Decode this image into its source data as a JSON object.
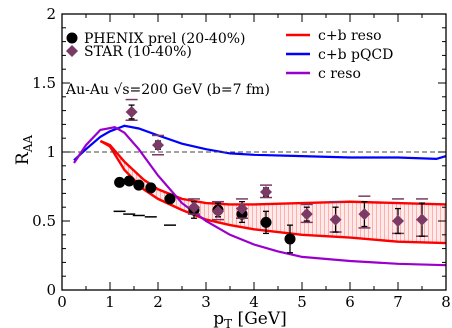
{
  "chart_data": {
    "type": "line",
    "xlabel": "p_T [GeV]",
    "ylabel": "R_AA",
    "xlim": [
      0,
      8
    ],
    "ylim": [
      0,
      2
    ],
    "xticks": [
      0,
      1,
      2,
      3,
      4,
      5,
      6,
      7,
      8
    ],
    "yticks": [
      0,
      0.5,
      1,
      1.5,
      2
    ],
    "xtick_labels": [
      "0",
      "1",
      "2",
      "3",
      "4",
      "5",
      "6",
      "7",
      "8"
    ],
    "ytick_labels": [
      "0",
      "0.5",
      "1",
      "1.5",
      "2"
    ],
    "grid": false,
    "legend_placement": "top",
    "annotation": "Au-Au √s=200 GeV (b=7 fm)",
    "reference_line": {
      "y": 1.0,
      "style": "dashed"
    },
    "legend": {
      "phenix": "PHENIX prel (20-40%)",
      "star": "STAR  (10-40%)",
      "cb_reso": "c+b reso",
      "cb_pqcd": "c+b pQCD",
      "c_reso": "c reso"
    },
    "series": [
      {
        "key": "phenix",
        "kind": "points",
        "marker": "circle",
        "color": "#000000",
        "points": [
          {
            "x": 1.2,
            "y": 0.78,
            "yerr": 0.0,
            "sys_low": 0.57,
            "sys_high": null
          },
          {
            "x": 1.4,
            "y": 0.79,
            "yerr": 0.0,
            "sys_low": 0.55,
            "sys_high": null
          },
          {
            "x": 1.6,
            "y": 0.76,
            "yerr": 0.0,
            "sys_low": 0.54,
            "sys_high": null
          },
          {
            "x": 1.85,
            "y": 0.74,
            "yerr": 0.0,
            "sys_low": 0.53,
            "sys_high": null
          },
          {
            "x": 2.25,
            "y": 0.66,
            "yerr": 0.02,
            "sys_low": 0.47,
            "sys_high": null
          },
          {
            "x": 2.75,
            "y": 0.58,
            "yerr": 0.06,
            "sys_low": null,
            "sys_high": null
          },
          {
            "x": 3.25,
            "y": 0.58,
            "yerr": 0.05,
            "sys_low": null,
            "sys_high": null
          },
          {
            "x": 3.75,
            "y": 0.55,
            "yerr": 0.06,
            "sys_low": null,
            "sys_high": null
          },
          {
            "x": 4.25,
            "y": 0.49,
            "yerr": 0.08,
            "sys_low": null,
            "sys_high": null
          },
          {
            "x": 4.75,
            "y": 0.37,
            "yerr": 0.1,
            "sys_low": null,
            "sys_high": null
          }
        ]
      },
      {
        "key": "star",
        "kind": "points",
        "marker": "diamond",
        "color": "#7b3a66",
        "points": [
          {
            "x": 1.45,
            "y": 1.29,
            "yerr": 0.05,
            "sys_low": 1.23,
            "sys_high": 1.38
          },
          {
            "x": 2.0,
            "y": 1.05,
            "yerr": 0.03,
            "sys_low": 0.98,
            "sys_high": 1.12
          },
          {
            "x": 2.75,
            "y": 0.6,
            "yerr": 0.04,
            "sys_low": 0.55,
            "sys_high": 0.66
          },
          {
            "x": 3.25,
            "y": 0.57,
            "yerr": 0.04,
            "sys_low": 0.51,
            "sys_high": 0.64
          },
          {
            "x": 3.75,
            "y": 0.59,
            "yerr": 0.05,
            "sys_low": 0.52,
            "sys_high": 0.66
          },
          {
            "x": 4.25,
            "y": 0.71,
            "yerr": 0.03,
            "sys_low": 0.67,
            "sys_high": 0.76
          },
          {
            "x": 5.1,
            "y": 0.55,
            "yerr": 0.05,
            "sys_low": 0.49,
            "sys_high": 0.62
          },
          {
            "x": 5.7,
            "y": 0.51,
            "yerr": 0.09,
            "sys_low": 0.42,
            "sys_high": 0.64
          },
          {
            "x": 6.3,
            "y": 0.55,
            "yerr": 0.09,
            "sys_low": 0.45,
            "sys_high": 0.68
          },
          {
            "x": 7.0,
            "y": 0.5,
            "yerr": 0.09,
            "sys_low": 0.41,
            "sys_high": 0.66
          },
          {
            "x": 7.5,
            "y": 0.51,
            "yerr": 0.12,
            "sys_low": 0.39,
            "sys_high": 0.66
          }
        ]
      },
      {
        "key": "cb_reso",
        "kind": "band",
        "color": "#ff0000",
        "upper": [
          [
            0.8,
            1.08
          ],
          [
            1.0,
            1.05
          ],
          [
            1.3,
            0.93
          ],
          [
            1.7,
            0.8
          ],
          [
            2.0,
            0.73
          ],
          [
            2.5,
            0.66
          ],
          [
            3.0,
            0.63
          ],
          [
            3.5,
            0.62
          ],
          [
            4.0,
            0.62
          ],
          [
            5.0,
            0.63
          ],
          [
            6.0,
            0.64
          ],
          [
            7.0,
            0.63
          ],
          [
            8.0,
            0.62
          ]
        ],
        "lower": [
          [
            0.8,
            1.08
          ],
          [
            1.0,
            1.04
          ],
          [
            1.3,
            0.87
          ],
          [
            1.7,
            0.73
          ],
          [
            2.0,
            0.66
          ],
          [
            2.5,
            0.58
          ],
          [
            3.0,
            0.51
          ],
          [
            3.5,
            0.47
          ],
          [
            4.0,
            0.44
          ],
          [
            5.0,
            0.4
          ],
          [
            6.0,
            0.38
          ],
          [
            7.0,
            0.35
          ],
          [
            8.0,
            0.34
          ]
        ]
      },
      {
        "key": "cb_pqcd",
        "kind": "line",
        "color": "#0000ff",
        "points": [
          [
            0.25,
            0.94
          ],
          [
            0.5,
            1.02
          ],
          [
            0.8,
            1.11
          ],
          [
            1.0,
            1.15
          ],
          [
            1.3,
            1.19
          ],
          [
            1.6,
            1.17
          ],
          [
            2.0,
            1.12
          ],
          [
            2.5,
            1.06
          ],
          [
            3.0,
            1.02
          ],
          [
            3.5,
            0.99
          ],
          [
            4.0,
            0.98
          ],
          [
            5.0,
            0.97
          ],
          [
            6.0,
            0.96
          ],
          [
            7.0,
            0.96
          ],
          [
            7.8,
            0.95
          ],
          [
            8.0,
            0.97
          ]
        ]
      },
      {
        "key": "c_reso",
        "kind": "line",
        "color": "#9900cc",
        "points": [
          [
            0.25,
            0.92
          ],
          [
            0.5,
            1.05
          ],
          [
            0.8,
            1.16
          ],
          [
            1.1,
            1.18
          ],
          [
            1.3,
            1.14
          ],
          [
            1.6,
            1.02
          ],
          [
            2.0,
            0.83
          ],
          [
            2.5,
            0.63
          ],
          [
            3.0,
            0.5
          ],
          [
            3.5,
            0.4
          ],
          [
            4.0,
            0.33
          ],
          [
            4.5,
            0.28
          ],
          [
            5.0,
            0.24
          ],
          [
            6.0,
            0.21
          ],
          [
            7.0,
            0.19
          ],
          [
            8.0,
            0.18
          ]
        ]
      }
    ]
  }
}
